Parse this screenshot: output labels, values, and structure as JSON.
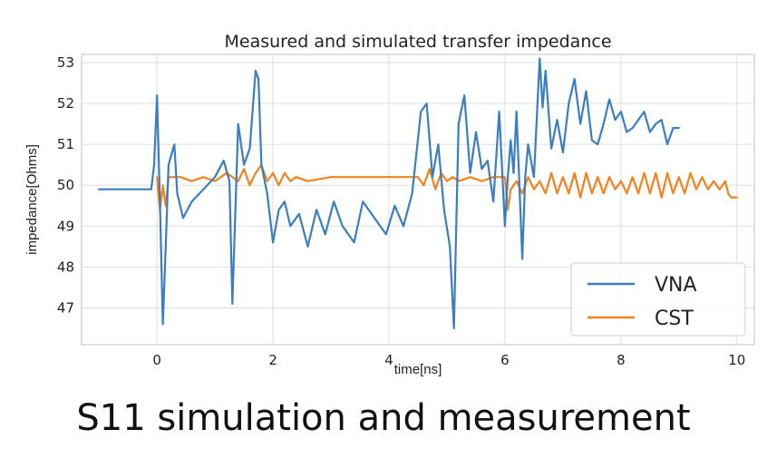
{
  "chart_data": {
    "type": "line",
    "title": "Measured and simulated transfer impedance",
    "xlabel": "time[ns]",
    "ylabel": "impedance[Ohms]",
    "xlim": [
      -1.3,
      10.3
    ],
    "ylim": [
      46.1,
      53.2
    ],
    "xticks": [
      0,
      2,
      4,
      6,
      8,
      10
    ],
    "yticks": [
      47,
      48,
      49,
      50,
      51,
      52,
      53
    ],
    "grid": true,
    "legend_position": "bottom-right",
    "series": [
      {
        "name": "VNA",
        "color": "#3a7ebf",
        "x": [
          -1.0,
          -0.6,
          -0.3,
          -0.1,
          -0.05,
          0.0,
          0.05,
          0.1,
          0.15,
          0.2,
          0.3,
          0.35,
          0.45,
          0.6,
          0.8,
          1.0,
          1.15,
          1.25,
          1.3,
          1.4,
          1.5,
          1.6,
          1.7,
          1.75,
          1.8,
          1.9,
          2.0,
          2.1,
          2.2,
          2.3,
          2.45,
          2.6,
          2.75,
          2.9,
          3.05,
          3.2,
          3.4,
          3.55,
          3.75,
          3.95,
          4.1,
          4.25,
          4.4,
          4.55,
          4.65,
          4.75,
          4.85,
          4.95,
          5.05,
          5.12,
          5.2,
          5.3,
          5.4,
          5.5,
          5.6,
          5.7,
          5.8,
          5.9,
          5.95,
          6.0,
          6.05,
          6.1,
          6.15,
          6.2,
          6.25,
          6.3,
          6.35,
          6.4,
          6.5,
          6.6,
          6.65,
          6.7,
          6.8,
          6.9,
          7.0,
          7.1,
          7.2,
          7.3,
          7.4,
          7.5,
          7.6,
          7.7,
          7.8,
          7.9,
          8.0,
          8.1,
          8.2,
          8.3,
          8.4,
          8.5,
          8.6,
          8.7,
          8.8,
          8.9,
          9.0
        ],
        "y": [
          49.9,
          49.9,
          49.9,
          49.9,
          50.5,
          52.2,
          49.6,
          46.6,
          48.5,
          50.5,
          51.0,
          49.8,
          49.2,
          49.6,
          49.9,
          50.2,
          50.6,
          50.1,
          47.1,
          51.5,
          50.5,
          50.9,
          52.8,
          52.6,
          50.5,
          49.8,
          48.6,
          49.4,
          49.6,
          49.0,
          49.3,
          48.5,
          49.4,
          48.8,
          49.6,
          49.0,
          48.6,
          49.6,
          49.2,
          48.8,
          49.5,
          49.0,
          49.8,
          51.8,
          52.0,
          50.2,
          51.0,
          49.4,
          48.5,
          46.5,
          51.5,
          52.2,
          50.3,
          51.3,
          50.4,
          50.6,
          49.6,
          51.8,
          50.4,
          49.0,
          50.2,
          51.1,
          50.3,
          51.8,
          50.0,
          48.2,
          50.2,
          51.0,
          50.2,
          53.1,
          51.9,
          52.8,
          50.9,
          51.6,
          50.8,
          52.0,
          52.6,
          51.5,
          52.3,
          51.1,
          51.0,
          51.5,
          52.1,
          51.6,
          51.8,
          51.3,
          51.4,
          51.6,
          51.8,
          51.3,
          51.5,
          51.6,
          51.0,
          51.4,
          51.4
        ]
      },
      {
        "name": "CST",
        "color": "#f0821f",
        "x": [
          0.0,
          0.05,
          0.1,
          0.15,
          0.2,
          0.4,
          0.6,
          0.8,
          1.0,
          1.2,
          1.4,
          1.5,
          1.6,
          1.7,
          1.8,
          1.9,
          2.0,
          2.1,
          2.2,
          2.3,
          2.4,
          2.6,
          3.0,
          3.5,
          4.0,
          4.5,
          4.6,
          4.7,
          4.8,
          4.9,
          5.0,
          5.1,
          5.2,
          5.4,
          5.6,
          5.8,
          6.0,
          6.05,
          6.1,
          6.2,
          6.3,
          6.4,
          6.5,
          6.6,
          6.7,
          6.8,
          6.9,
          7.0,
          7.1,
          7.2,
          7.3,
          7.4,
          7.5,
          7.6,
          7.7,
          7.8,
          7.9,
          8.0,
          8.1,
          8.2,
          8.3,
          8.4,
          8.5,
          8.6,
          8.7,
          8.8,
          8.9,
          9.0,
          9.1,
          9.2,
          9.3,
          9.4,
          9.5,
          9.6,
          9.7,
          9.8,
          9.85,
          9.9,
          10.0
        ],
        "y": [
          50.2,
          49.4,
          50.0,
          49.5,
          50.2,
          50.2,
          50.1,
          50.2,
          50.1,
          50.3,
          50.1,
          50.4,
          50.0,
          50.3,
          50.5,
          50.1,
          50.3,
          50.0,
          50.3,
          50.1,
          50.2,
          50.1,
          50.2,
          50.2,
          50.2,
          50.2,
          50.0,
          50.4,
          49.9,
          50.3,
          50.1,
          50.2,
          50.1,
          50.2,
          50.1,
          50.2,
          50.2,
          49.4,
          49.9,
          50.1,
          49.8,
          50.2,
          49.9,
          50.1,
          49.8,
          50.3,
          49.8,
          50.2,
          49.8,
          50.3,
          49.7,
          50.3,
          49.8,
          50.2,
          49.8,
          50.2,
          49.9,
          50.1,
          49.8,
          50.2,
          49.8,
          50.3,
          49.8,
          50.3,
          49.7,
          50.3,
          49.8,
          50.2,
          49.8,
          50.3,
          49.9,
          50.2,
          49.9,
          50.1,
          49.9,
          50.1,
          49.8,
          49.7,
          49.7
        ]
      }
    ]
  },
  "caption": "S11 simulation and measurement"
}
